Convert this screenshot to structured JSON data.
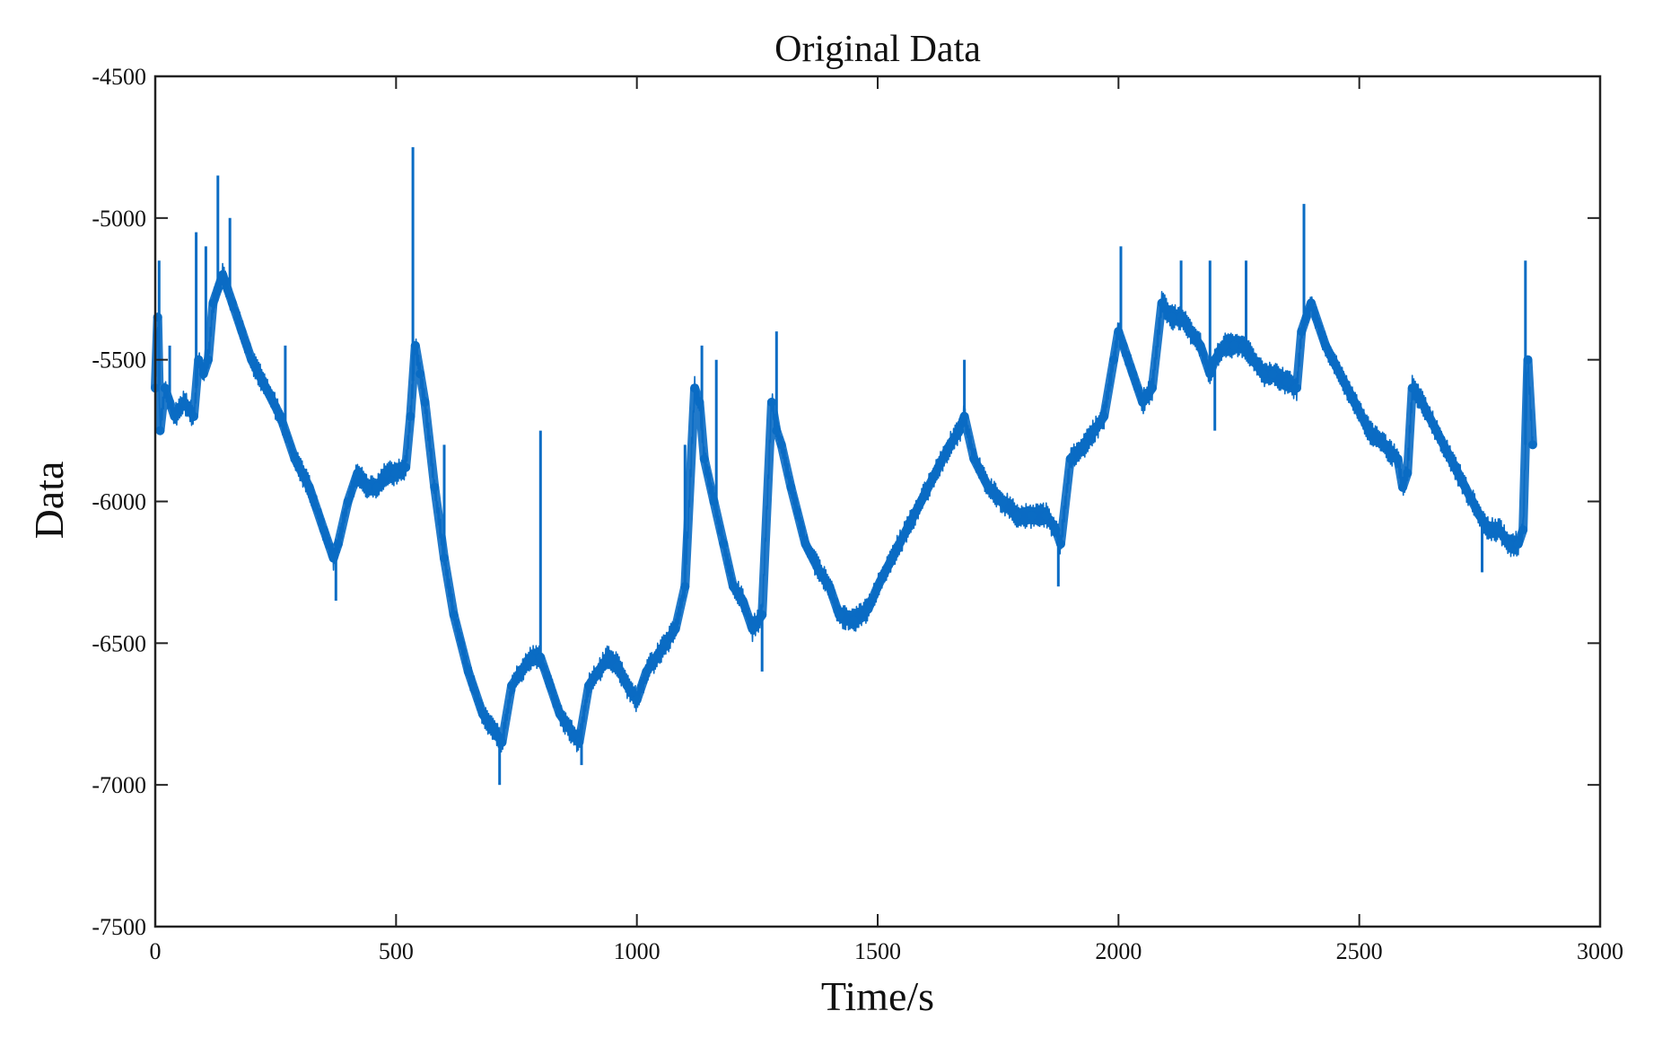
{
  "chart_data": {
    "type": "line",
    "title": "Original Data",
    "xlabel": "Time/s",
    "ylabel": "Data",
    "xlim": [
      0,
      3000
    ],
    "ylim": [
      -7500,
      -4500
    ],
    "xticks": [
      0,
      500,
      1000,
      1500,
      2000,
      2500,
      3000
    ],
    "yticks": [
      -4500,
      -5000,
      -5500,
      -6000,
      -6500,
      -7000,
      -7500
    ],
    "xtick_labels": [
      "0",
      "500",
      "1000",
      "1500",
      "2000",
      "2500",
      "3000"
    ],
    "ytick_labels": [
      "-4500",
      "-5000",
      "-5500",
      "-6000",
      "-6500",
      "-7000",
      "-7500"
    ],
    "grid": false,
    "legend": "none",
    "series": [
      {
        "color": "#0a6cc4",
        "band": 90,
        "x": [
          0,
          5,
          10,
          20,
          40,
          60,
          80,
          90,
          100,
          110,
          120,
          130,
          140,
          150,
          160,
          180,
          200,
          230,
          260,
          290,
          320,
          350,
          370,
          380,
          400,
          420,
          440,
          460,
          480,
          500,
          520,
          530,
          540,
          550,
          560,
          580,
          600,
          620,
          650,
          680,
          700,
          720,
          740,
          760,
          780,
          800,
          820,
          840,
          860,
          880,
          900,
          920,
          940,
          960,
          980,
          1000,
          1020,
          1040,
          1060,
          1080,
          1100,
          1120,
          1130,
          1140,
          1160,
          1180,
          1200,
          1220,
          1240,
          1260,
          1280,
          1290,
          1300,
          1320,
          1350,
          1380,
          1400,
          1420,
          1450,
          1480,
          1500,
          1530,
          1560,
          1590,
          1620,
          1650,
          1670,
          1680,
          1700,
          1730,
          1760,
          1790,
          1820,
          1850,
          1870,
          1880,
          1900,
          1930,
          1950,
          1970,
          1990,
          2000,
          2010,
          2030,
          2050,
          2070,
          2090,
          2110,
          2130,
          2150,
          2170,
          2190,
          2200,
          2220,
          2240,
          2260,
          2280,
          2300,
          2320,
          2350,
          2370,
          2380,
          2400,
          2430,
          2460,
          2490,
          2520,
          2550,
          2580,
          2590,
          2600,
          2610,
          2630,
          2660,
          2690,
          2720,
          2750,
          2770,
          2790,
          2810,
          2830,
          2840,
          2850,
          2860
        ],
        "y": [
          -5600,
          -5350,
          -5750,
          -5600,
          -5700,
          -5650,
          -5700,
          -5500,
          -5550,
          -5500,
          -5300,
          -5250,
          -5200,
          -5250,
          -5300,
          -5400,
          -5500,
          -5600,
          -5700,
          -5850,
          -5950,
          -6100,
          -6200,
          -6150,
          -6000,
          -5900,
          -5950,
          -5950,
          -5900,
          -5900,
          -5880,
          -5700,
          -5450,
          -5550,
          -5650,
          -5950,
          -6200,
          -6400,
          -6600,
          -6750,
          -6800,
          -6850,
          -6650,
          -6600,
          -6550,
          -6550,
          -6650,
          -6750,
          -6800,
          -6850,
          -6650,
          -6600,
          -6550,
          -6580,
          -6650,
          -6700,
          -6600,
          -6550,
          -6500,
          -6450,
          -6300,
          -5600,
          -5650,
          -5850,
          -6000,
          -6150,
          -6300,
          -6350,
          -6450,
          -6400,
          -5650,
          -5750,
          -5800,
          -5950,
          -6150,
          -6250,
          -6300,
          -6400,
          -6420,
          -6380,
          -6300,
          -6200,
          -6100,
          -6000,
          -5900,
          -5800,
          -5750,
          -5700,
          -5850,
          -5950,
          -6000,
          -6050,
          -6050,
          -6050,
          -6100,
          -6150,
          -5850,
          -5800,
          -5750,
          -5700,
          -5500,
          -5400,
          -5450,
          -5550,
          -5650,
          -5600,
          -5300,
          -5350,
          -5350,
          -5400,
          -5450,
          -5550,
          -5500,
          -5450,
          -5450,
          -5450,
          -5500,
          -5550,
          -5550,
          -5580,
          -5600,
          -5400,
          -5300,
          -5450,
          -5550,
          -5650,
          -5750,
          -5800,
          -5850,
          -5950,
          -5900,
          -5600,
          -5650,
          -5750,
          -5850,
          -5950,
          -6050,
          -6100,
          -6100,
          -6150,
          -6150,
          -6100,
          -5500,
          -5800
        ]
      }
    ],
    "spikes": [
      {
        "x": 8,
        "y": -5150
      },
      {
        "x": 30,
        "y": -5450
      },
      {
        "x": 85,
        "y": -5050
      },
      {
        "x": 105,
        "y": -5100
      },
      {
        "x": 130,
        "y": -4850
      },
      {
        "x": 155,
        "y": -5000
      },
      {
        "x": 270,
        "y": -5450
      },
      {
        "x": 375,
        "y": -6350
      },
      {
        "x": 535,
        "y": -4750
      },
      {
        "x": 600,
        "y": -5800
      },
      {
        "x": 715,
        "y": -7000
      },
      {
        "x": 800,
        "y": -5750
      },
      {
        "x": 885,
        "y": -6930
      },
      {
        "x": 1100,
        "y": -5800
      },
      {
        "x": 1135,
        "y": -5450
      },
      {
        "x": 1165,
        "y": -5500
      },
      {
        "x": 1260,
        "y": -6600
      },
      {
        "x": 1290,
        "y": -5400
      },
      {
        "x": 1680,
        "y": -5500
      },
      {
        "x": 1875,
        "y": -6300
      },
      {
        "x": 2005,
        "y": -5100
      },
      {
        "x": 2130,
        "y": -5150
      },
      {
        "x": 2190,
        "y": -5150
      },
      {
        "x": 2200,
        "y": -5750
      },
      {
        "x": 2265,
        "y": -5150
      },
      {
        "x": 2385,
        "y": -4950
      },
      {
        "x": 2420,
        "y": -5400
      },
      {
        "x": 2755,
        "y": -6250
      },
      {
        "x": 2845,
        "y": -5150
      }
    ]
  }
}
